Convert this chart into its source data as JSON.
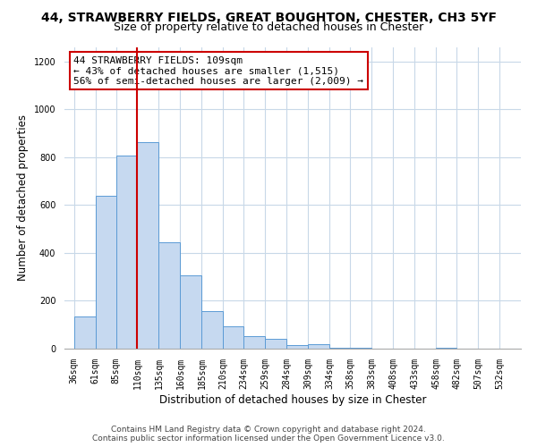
{
  "title": "44, STRAWBERRY FIELDS, GREAT BOUGHTON, CHESTER, CH3 5YF",
  "subtitle": "Size of property relative to detached houses in Chester",
  "xlabel": "Distribution of detached houses by size in Chester",
  "ylabel": "Number of detached properties",
  "bar_left_edges": [
    36,
    61,
    85,
    110,
    135,
    160,
    185,
    210,
    234,
    259,
    284,
    309,
    334,
    358,
    383,
    408,
    433,
    458,
    482,
    507
  ],
  "bar_rights": [
    61,
    85,
    110,
    135,
    160,
    185,
    210,
    234,
    259,
    284,
    309,
    334,
    358,
    383,
    408,
    433,
    458,
    482,
    507,
    532
  ],
  "bar_heights": [
    135,
    640,
    805,
    863,
    443,
    308,
    157,
    95,
    52,
    42,
    15,
    20,
    5,
    2,
    0,
    0,
    0,
    2,
    0,
    0
  ],
  "tick_labels": [
    "36sqm",
    "61sqm",
    "85sqm",
    "110sqm",
    "135sqm",
    "160sqm",
    "185sqm",
    "210sqm",
    "234sqm",
    "259sqm",
    "284sqm",
    "309sqm",
    "334sqm",
    "358sqm",
    "383sqm",
    "408sqm",
    "433sqm",
    "458sqm",
    "482sqm",
    "507sqm",
    "532sqm"
  ],
  "tick_positions": [
    36,
    61,
    85,
    110,
    135,
    160,
    185,
    210,
    234,
    259,
    284,
    309,
    334,
    358,
    383,
    408,
    433,
    458,
    482,
    507,
    532
  ],
  "ylim": [
    0,
    1260
  ],
  "xlim": [
    25,
    557
  ],
  "bar_color": "#c6d9f0",
  "bar_edge_color": "#5b9bd5",
  "vline_x": 109,
  "vline_color": "#cc0000",
  "annotation_text": "44 STRAWBERRY FIELDS: 109sqm\n← 43% of detached houses are smaller (1,515)\n56% of semi-detached houses are larger (2,009) →",
  "annotation_box_color": "#ffffff",
  "annotation_box_edge_color": "#cc0000",
  "footer_line1": "Contains HM Land Registry data © Crown copyright and database right 2024.",
  "footer_line2": "Contains public sector information licensed under the Open Government Licence v3.0.",
  "background_color": "#ffffff",
  "grid_color": "#c8d8e8",
  "title_fontsize": 10,
  "subtitle_fontsize": 9,
  "axis_label_fontsize": 8.5,
  "tick_fontsize": 7,
  "annotation_fontsize": 8,
  "footer_fontsize": 6.5
}
